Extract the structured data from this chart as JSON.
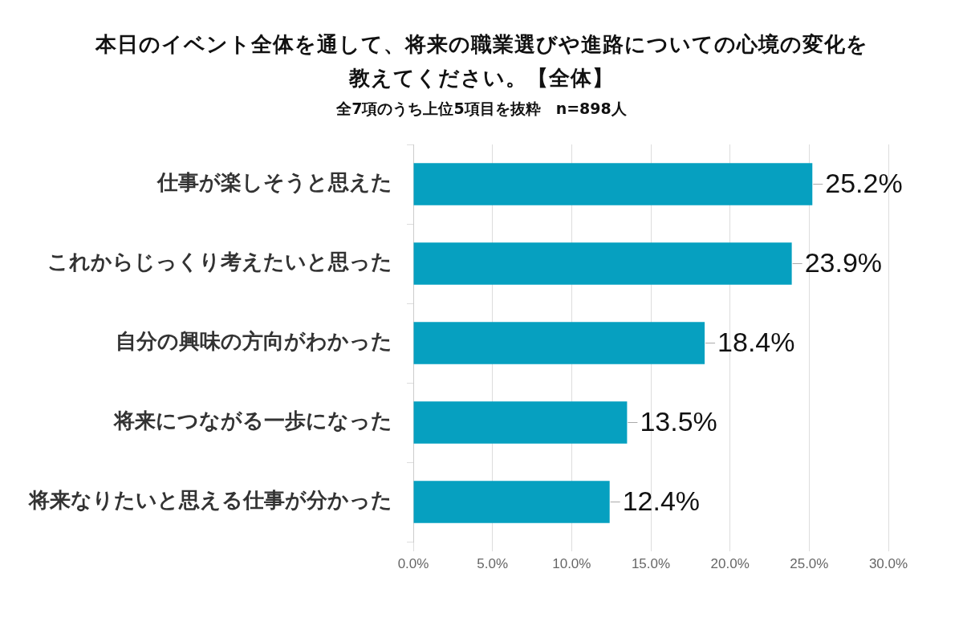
{
  "chart_data": {
    "type": "bar",
    "title": "本日のイベント全体を通して、将来の職業選びや進路についての心境の変化を教えてください。【全体】",
    "subtitle": "全7項のうち上位5項目を抜粋　n=898人",
    "orientation": "horizontal",
    "categories": [
      "仕事が楽しそうと思えた",
      "これからじっくり考えたいと思った",
      "自分の興味の方向がわかった",
      "将来につながる一歩になった",
      "将来なりたいと思える仕事が分かった"
    ],
    "values": [
      25.2,
      23.9,
      18.4,
      13.5,
      12.4
    ],
    "value_labels": [
      "25.2%",
      "23.9%",
      "18.4%",
      "13.5%",
      "12.4%"
    ],
    "color": "#06a0c0",
    "xlim": [
      0,
      30
    ],
    "xticks": [
      {
        "value": 0,
        "label": "0.0%"
      },
      {
        "value": 5,
        "label": "5.0%"
      },
      {
        "value": 10,
        "label": "10.0%"
      },
      {
        "value": 15,
        "label": "15.0%"
      },
      {
        "value": 20,
        "label": "20.0%"
      },
      {
        "value": 25,
        "label": "25.0%"
      },
      {
        "value": 30,
        "label": "30.0%"
      }
    ],
    "grid": "x"
  }
}
